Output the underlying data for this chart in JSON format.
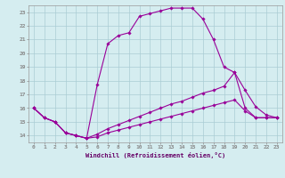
{
  "xlabel": "Windchill (Refroidissement éolien,°C)",
  "background_color": "#d5edf0",
  "grid_color": "#aacdd4",
  "line_color": "#990099",
  "xlim": [
    -0.5,
    23.5
  ],
  "ylim": [
    13.5,
    23.5
  ],
  "xticks": [
    0,
    1,
    2,
    3,
    4,
    5,
    6,
    7,
    8,
    9,
    10,
    11,
    12,
    13,
    14,
    15,
    16,
    17,
    18,
    19,
    20,
    21,
    22,
    23
  ],
  "yticks": [
    14,
    15,
    16,
    17,
    18,
    19,
    20,
    21,
    22,
    23
  ],
  "line1_x": [
    0,
    1,
    2,
    3,
    4,
    5,
    6,
    7,
    8,
    9,
    10,
    11,
    12,
    13,
    14,
    15,
    16,
    17,
    18,
    19,
    20,
    21,
    22,
    23
  ],
  "line1_y": [
    16.0,
    15.3,
    15.0,
    14.2,
    14.0,
    13.8,
    17.7,
    20.7,
    21.3,
    21.5,
    22.7,
    22.9,
    23.1,
    23.3,
    23.3,
    23.3,
    22.5,
    21.0,
    19.0,
    18.6,
    16.0,
    15.3,
    15.3,
    15.3
  ],
  "line2_x": [
    0,
    1,
    2,
    3,
    4,
    5,
    6,
    7,
    8,
    9,
    10,
    11,
    12,
    13,
    14,
    15,
    16,
    17,
    18,
    19,
    20,
    21,
    22,
    23
  ],
  "line2_y": [
    16.0,
    15.3,
    15.0,
    14.2,
    14.0,
    13.8,
    14.1,
    14.5,
    14.8,
    15.1,
    15.4,
    15.7,
    16.0,
    16.3,
    16.5,
    16.8,
    17.1,
    17.3,
    17.6,
    18.6,
    17.3,
    16.1,
    15.5,
    15.3
  ],
  "line3_x": [
    0,
    1,
    2,
    3,
    4,
    5,
    6,
    7,
    8,
    9,
    10,
    11,
    12,
    13,
    14,
    15,
    16,
    17,
    18,
    19,
    20,
    21,
    22,
    23
  ],
  "line3_y": [
    16.0,
    15.3,
    15.0,
    14.2,
    14.0,
    13.8,
    13.9,
    14.2,
    14.4,
    14.6,
    14.8,
    15.0,
    15.2,
    15.4,
    15.6,
    15.8,
    16.0,
    16.2,
    16.4,
    16.6,
    15.8,
    15.3,
    15.3,
    15.3
  ]
}
